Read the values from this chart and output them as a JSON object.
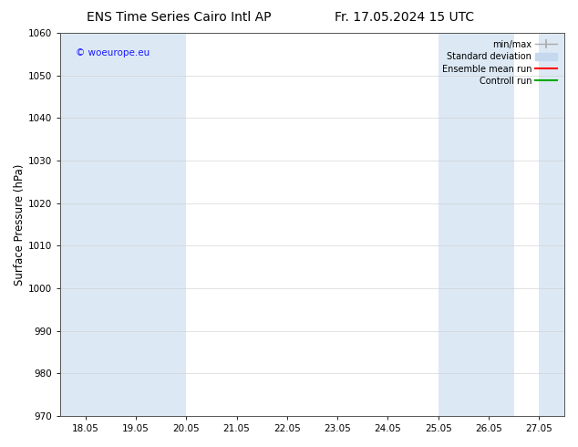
{
  "title_left": "ENS Time Series Cairo Intl AP",
  "title_right": "Fr. 17.05.2024 15 UTC",
  "ylabel": "Surface Pressure (hPa)",
  "ylim": [
    970,
    1060
  ],
  "yticks": [
    970,
    980,
    990,
    1000,
    1010,
    1020,
    1030,
    1040,
    1050,
    1060
  ],
  "xtick_labels": [
    "18.05",
    "19.05",
    "20.05",
    "21.05",
    "22.05",
    "23.05",
    "24.05",
    "25.05",
    "26.05",
    "27.05"
  ],
  "shaded_color": "#dce9f5",
  "background_color": "#ffffff",
  "copyright_text": "© woeurope.eu",
  "copyright_color": "#1a1aff",
  "grid_color": "#cccccc",
  "title_fontsize": 10,
  "tick_fontsize": 7.5,
  "ylabel_fontsize": 8.5,
  "legend_label_color": "#000000",
  "minmax_color": "#aaaaaa",
  "stddev_color": "#c5d8ee",
  "ensemble_color": "#ff0000",
  "control_color": "#00aa00"
}
